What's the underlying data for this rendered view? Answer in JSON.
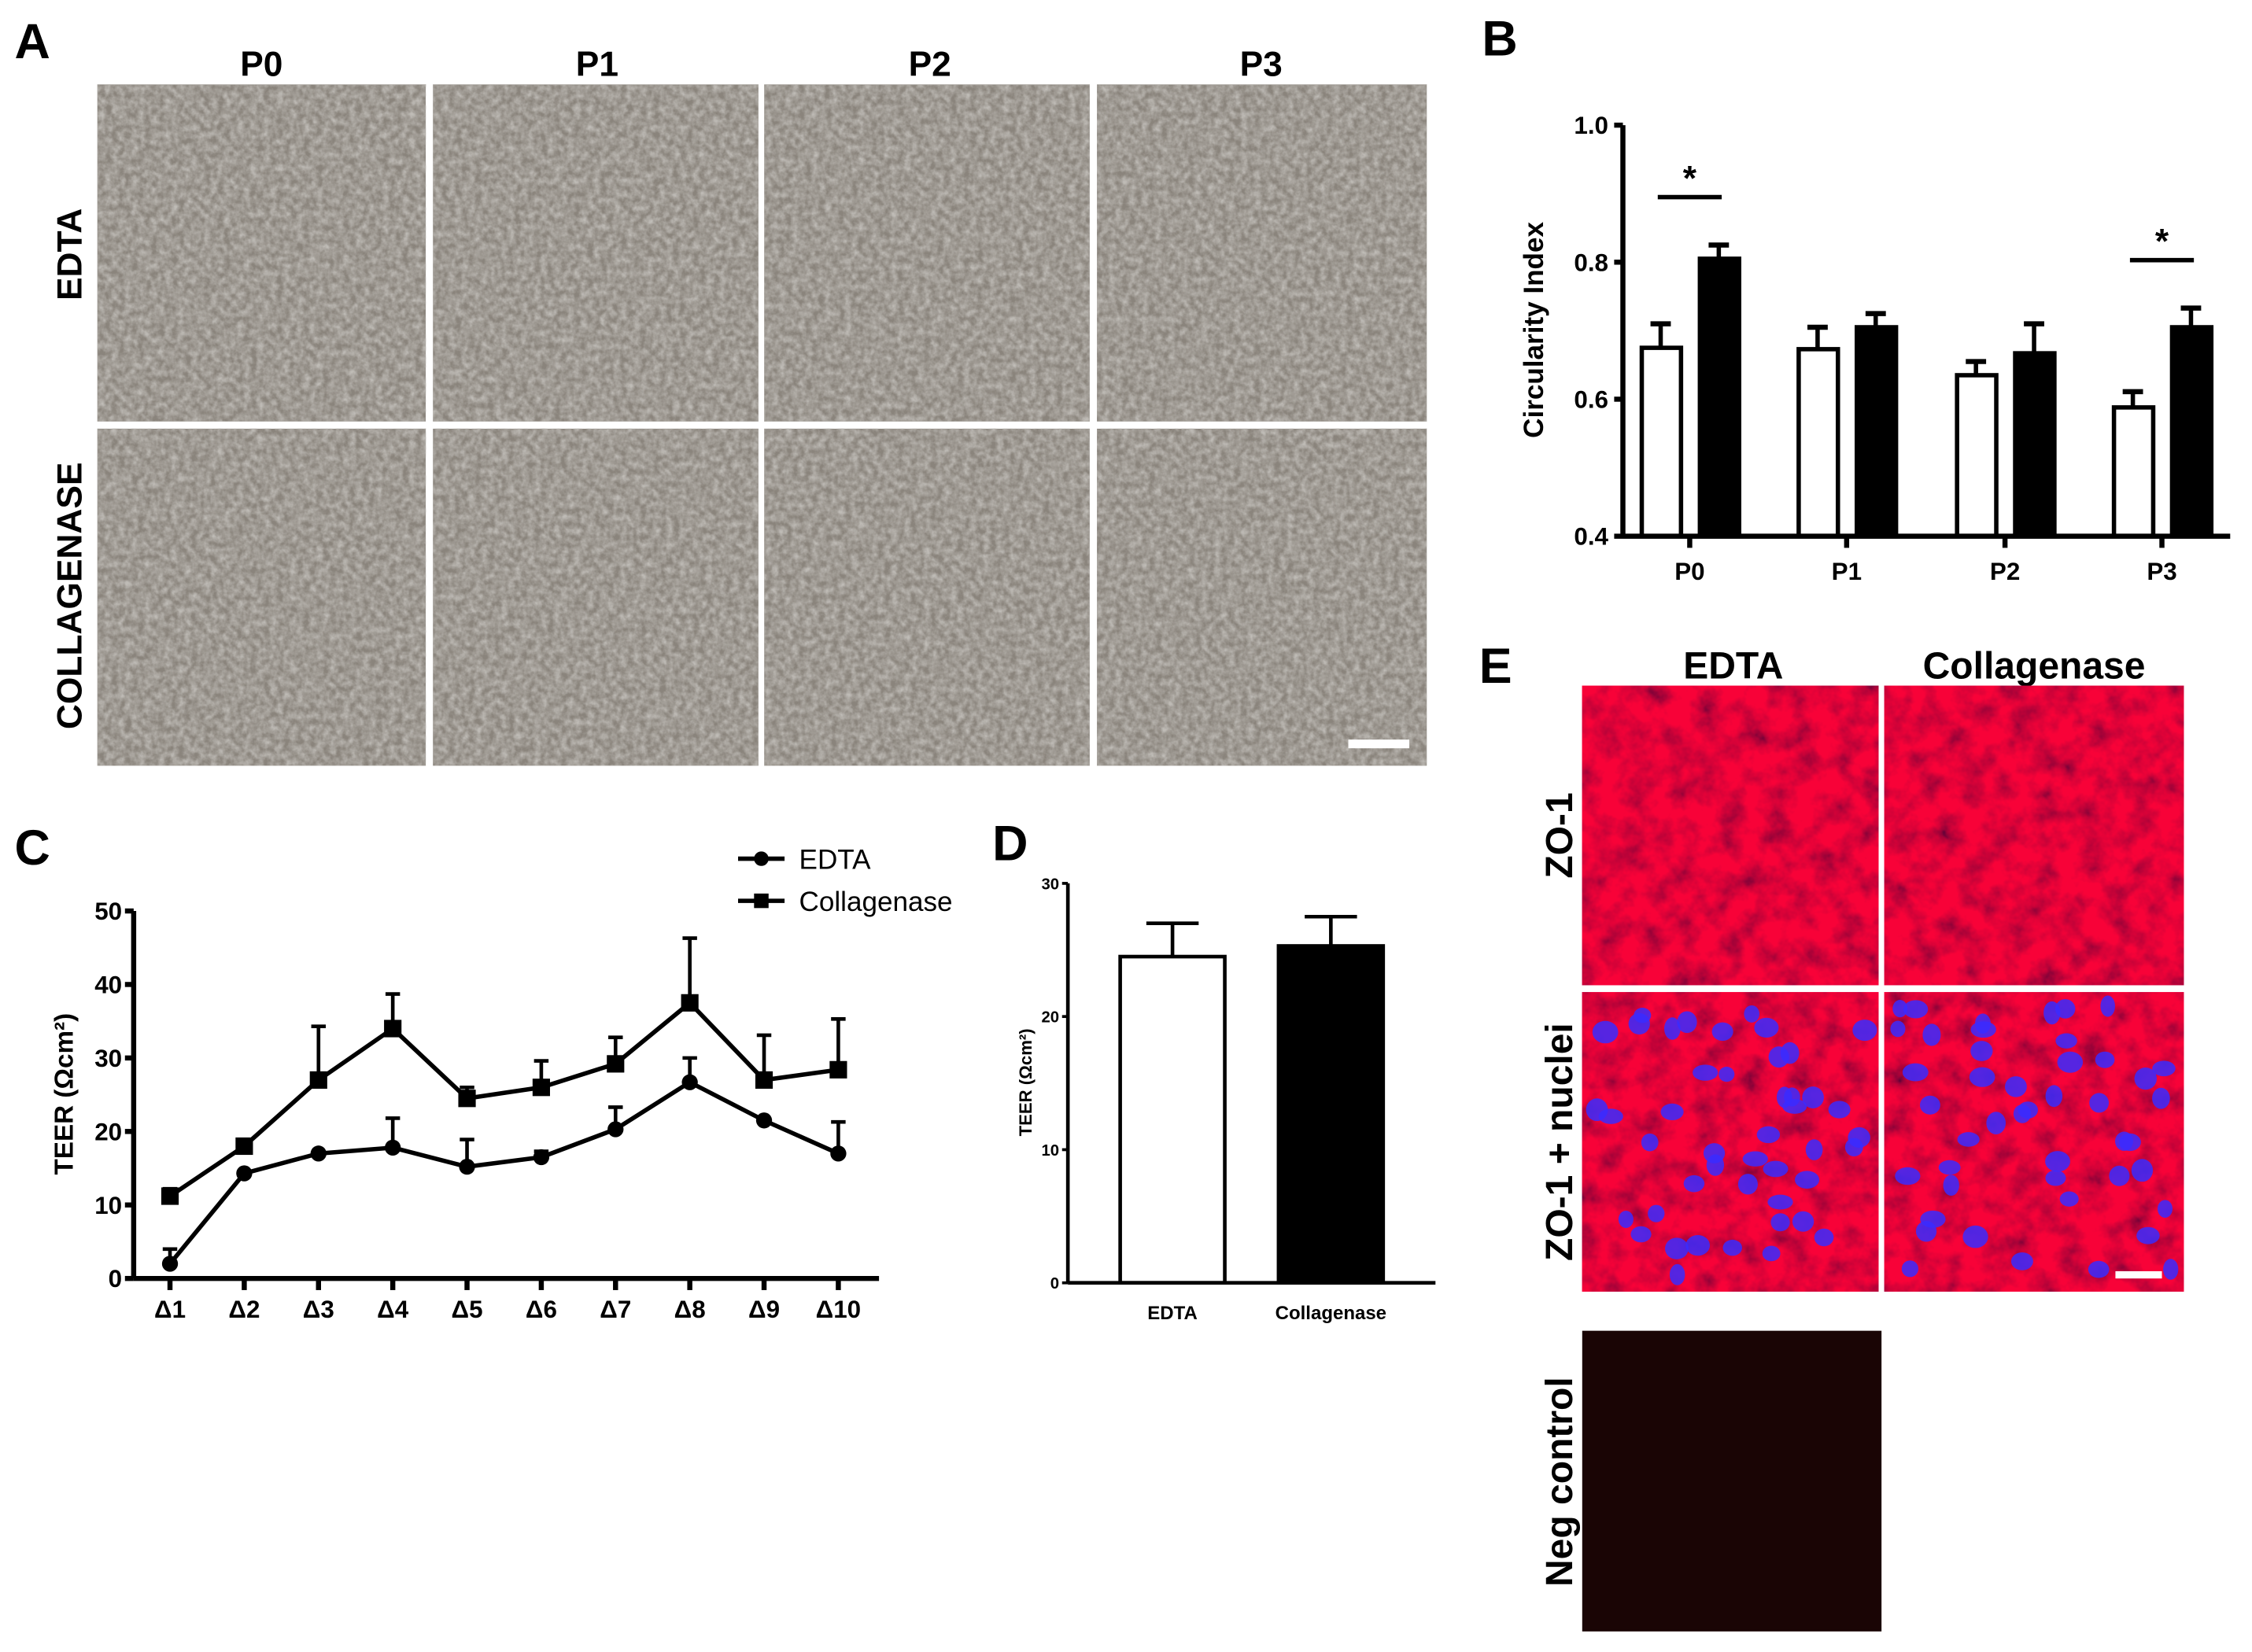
{
  "panels": {
    "A": {
      "label": "A",
      "columns": [
        "P0",
        "P1",
        "P2",
        "P3"
      ],
      "rows": [
        "EDTA",
        "COLLAGENASE"
      ]
    },
    "B": {
      "label": "B"
    },
    "C": {
      "label": "C"
    },
    "D": {
      "label": "D"
    },
    "E": {
      "label": "E",
      "columns": [
        "EDTA",
        "Collagenase"
      ],
      "rows": [
        "ZO-1",
        "ZO-1 + nuclei",
        "Neg control"
      ]
    }
  },
  "colors": {
    "micrograph": "#8a847c",
    "zo1_red": "#d01010",
    "nuclei_blue": "#3a2cff",
    "neg_control": "#1a0505"
  },
  "chart_data": [
    {
      "id": "B",
      "type": "bar",
      "ylabel": "Circularity Index",
      "categories": [
        "P0",
        "P1",
        "P2",
        "P3"
      ],
      "ylim": [
        0.4,
        1.0
      ],
      "yticks": [
        "0.4",
        "0.6",
        "0.8",
        "1.0"
      ],
      "series": [
        {
          "fill": "#ffffff",
          "values": [
            0.675,
            0.673,
            0.635,
            0.588
          ],
          "errors": [
            0.035,
            0.032,
            0.02,
            0.023
          ]
        },
        {
          "fill": "#000000",
          "values": [
            0.805,
            0.705,
            0.667,
            0.705
          ],
          "errors": [
            0.02,
            0.02,
            0.043,
            0.028
          ]
        }
      ],
      "annotations": [
        {
          "category": "P0",
          "text": "*"
        },
        {
          "category": "P3",
          "text": "*"
        }
      ]
    },
    {
      "id": "C",
      "type": "line",
      "ylabel": "TEER (Ωcm²)",
      "categories": [
        "Δ1",
        "Δ2",
        "Δ3",
        "Δ4",
        "Δ5",
        "Δ6",
        "Δ7",
        "Δ8",
        "Δ9",
        "Δ10"
      ],
      "ylim": [
        0,
        50
      ],
      "yticks": [
        "0",
        "10",
        "20",
        "30",
        "40",
        "50"
      ],
      "legend": "top-right",
      "series": [
        {
          "name": "EDTA",
          "marker": "circle",
          "values": [
            2,
            14.3,
            17,
            17.8,
            15.2,
            16.5,
            20.3,
            26.7,
            21.5,
            17
          ],
          "errors": [
            2,
            0,
            0,
            4,
            3.7,
            0.8,
            3,
            3.3,
            0,
            4.3
          ]
        },
        {
          "name": "Collagenase",
          "marker": "square",
          "values": [
            11.2,
            18,
            27,
            34,
            24.5,
            26,
            29.2,
            37.5,
            27,
            28.4
          ],
          "errors": [
            1,
            0,
            7.3,
            4.7,
            1.5,
            3.6,
            3.6,
            8.8,
            6.1,
            6.9
          ]
        }
      ]
    },
    {
      "id": "D",
      "type": "bar",
      "ylabel": "TEER (Ωcm²)",
      "categories": [
        "EDTA",
        "Collagenase"
      ],
      "ylim": [
        0,
        30
      ],
      "yticks": [
        "0",
        "10",
        "20",
        "30"
      ],
      "values": [
        24.5,
        25.3
      ],
      "errors": [
        2.5,
        2.2
      ],
      "fills": [
        "#ffffff",
        "#000000"
      ]
    }
  ]
}
